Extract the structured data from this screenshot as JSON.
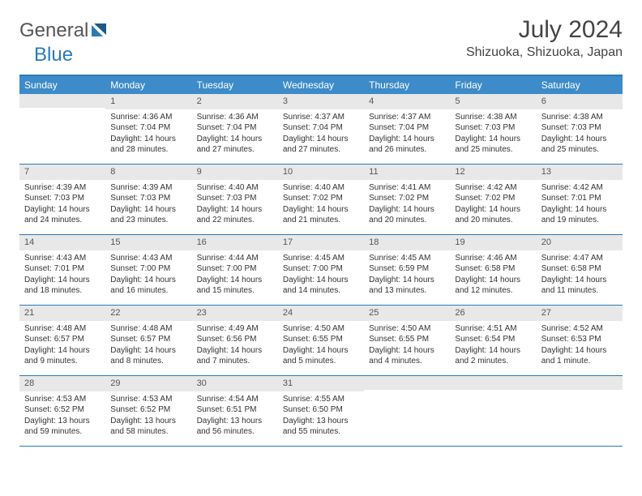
{
  "logo": {
    "text1": "General",
    "text2": "Blue"
  },
  "title": "July 2024",
  "location": "Shizuoka, Shizuoka, Japan",
  "colors": {
    "header_bg": "#3d8bc8",
    "border": "#2a7ab8",
    "daynum_bg": "#e8e8e8",
    "text": "#333333"
  },
  "day_names": [
    "Sunday",
    "Monday",
    "Tuesday",
    "Wednesday",
    "Thursday",
    "Friday",
    "Saturday"
  ],
  "weeks": [
    [
      null,
      {
        "n": "1",
        "sr": "4:36 AM",
        "ss": "7:04 PM",
        "dl": "14 hours and 28 minutes."
      },
      {
        "n": "2",
        "sr": "4:36 AM",
        "ss": "7:04 PM",
        "dl": "14 hours and 27 minutes."
      },
      {
        "n": "3",
        "sr": "4:37 AM",
        "ss": "7:04 PM",
        "dl": "14 hours and 27 minutes."
      },
      {
        "n": "4",
        "sr": "4:37 AM",
        "ss": "7:04 PM",
        "dl": "14 hours and 26 minutes."
      },
      {
        "n": "5",
        "sr": "4:38 AM",
        "ss": "7:03 PM",
        "dl": "14 hours and 25 minutes."
      },
      {
        "n": "6",
        "sr": "4:38 AM",
        "ss": "7:03 PM",
        "dl": "14 hours and 25 minutes."
      }
    ],
    [
      {
        "n": "7",
        "sr": "4:39 AM",
        "ss": "7:03 PM",
        "dl": "14 hours and 24 minutes."
      },
      {
        "n": "8",
        "sr": "4:39 AM",
        "ss": "7:03 PM",
        "dl": "14 hours and 23 minutes."
      },
      {
        "n": "9",
        "sr": "4:40 AM",
        "ss": "7:03 PM",
        "dl": "14 hours and 22 minutes."
      },
      {
        "n": "10",
        "sr": "4:40 AM",
        "ss": "7:02 PM",
        "dl": "14 hours and 21 minutes."
      },
      {
        "n": "11",
        "sr": "4:41 AM",
        "ss": "7:02 PM",
        "dl": "14 hours and 20 minutes."
      },
      {
        "n": "12",
        "sr": "4:42 AM",
        "ss": "7:02 PM",
        "dl": "14 hours and 20 minutes."
      },
      {
        "n": "13",
        "sr": "4:42 AM",
        "ss": "7:01 PM",
        "dl": "14 hours and 19 minutes."
      }
    ],
    [
      {
        "n": "14",
        "sr": "4:43 AM",
        "ss": "7:01 PM",
        "dl": "14 hours and 18 minutes."
      },
      {
        "n": "15",
        "sr": "4:43 AM",
        "ss": "7:00 PM",
        "dl": "14 hours and 16 minutes."
      },
      {
        "n": "16",
        "sr": "4:44 AM",
        "ss": "7:00 PM",
        "dl": "14 hours and 15 minutes."
      },
      {
        "n": "17",
        "sr": "4:45 AM",
        "ss": "7:00 PM",
        "dl": "14 hours and 14 minutes."
      },
      {
        "n": "18",
        "sr": "4:45 AM",
        "ss": "6:59 PM",
        "dl": "14 hours and 13 minutes."
      },
      {
        "n": "19",
        "sr": "4:46 AM",
        "ss": "6:58 PM",
        "dl": "14 hours and 12 minutes."
      },
      {
        "n": "20",
        "sr": "4:47 AM",
        "ss": "6:58 PM",
        "dl": "14 hours and 11 minutes."
      }
    ],
    [
      {
        "n": "21",
        "sr": "4:48 AM",
        "ss": "6:57 PM",
        "dl": "14 hours and 9 minutes."
      },
      {
        "n": "22",
        "sr": "4:48 AM",
        "ss": "6:57 PM",
        "dl": "14 hours and 8 minutes."
      },
      {
        "n": "23",
        "sr": "4:49 AM",
        "ss": "6:56 PM",
        "dl": "14 hours and 7 minutes."
      },
      {
        "n": "24",
        "sr": "4:50 AM",
        "ss": "6:55 PM",
        "dl": "14 hours and 5 minutes."
      },
      {
        "n": "25",
        "sr": "4:50 AM",
        "ss": "6:55 PM",
        "dl": "14 hours and 4 minutes."
      },
      {
        "n": "26",
        "sr": "4:51 AM",
        "ss": "6:54 PM",
        "dl": "14 hours and 2 minutes."
      },
      {
        "n": "27",
        "sr": "4:52 AM",
        "ss": "6:53 PM",
        "dl": "14 hours and 1 minute."
      }
    ],
    [
      {
        "n": "28",
        "sr": "4:53 AM",
        "ss": "6:52 PM",
        "dl": "13 hours and 59 minutes."
      },
      {
        "n": "29",
        "sr": "4:53 AM",
        "ss": "6:52 PM",
        "dl": "13 hours and 58 minutes."
      },
      {
        "n": "30",
        "sr": "4:54 AM",
        "ss": "6:51 PM",
        "dl": "13 hours and 56 minutes."
      },
      {
        "n": "31",
        "sr": "4:55 AM",
        "ss": "6:50 PM",
        "dl": "13 hours and 55 minutes."
      },
      null,
      null,
      null
    ]
  ],
  "labels": {
    "sunrise": "Sunrise: ",
    "sunset": "Sunset: ",
    "daylight": "Daylight: "
  }
}
